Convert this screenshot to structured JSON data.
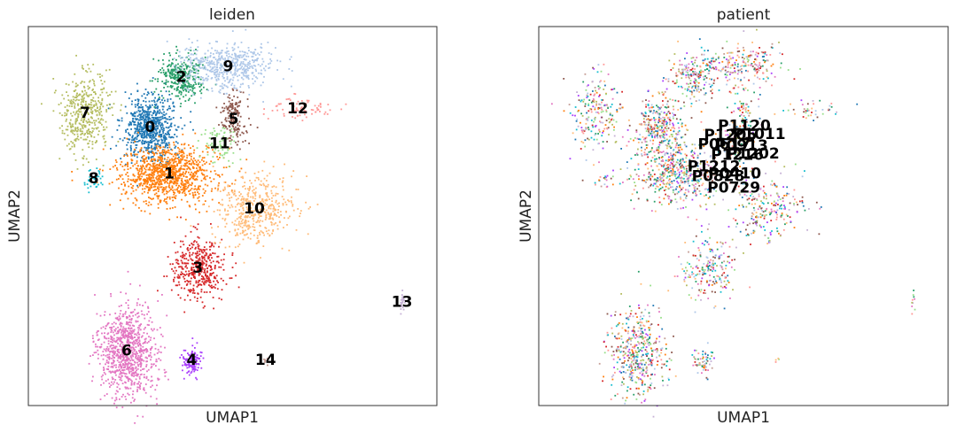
{
  "chart_data": [
    {
      "type": "scatter",
      "title": "leiden",
      "xlabel": "UMAP1",
      "ylabel": "UMAP2",
      "ticks": false,
      "grid": false,
      "legend": "on data",
      "clusters": [
        {
          "label": "0",
          "color": "#1f77b4",
          "center": [
            -0.9,
            0.76
          ],
          "spread": [
            0.15,
            0.14
          ],
          "n": 700
        },
        {
          "label": "1",
          "color": "#ff7f0e",
          "center": [
            -0.68,
            0.36
          ],
          "spread": [
            0.28,
            0.12
          ],
          "n": 1000
        },
        {
          "label": "2",
          "color": "#279e68",
          "center": [
            -0.54,
            1.19
          ],
          "spread": [
            0.14,
            0.1
          ],
          "n": 320
        },
        {
          "label": "3",
          "color": "#d62728",
          "center": [
            -0.35,
            -0.45
          ],
          "spread": [
            0.15,
            0.13
          ],
          "n": 420
        },
        {
          "label": "4",
          "color": "#aa40fc",
          "center": [
            -0.42,
            -1.24
          ],
          "spread": [
            0.06,
            0.06
          ],
          "n": 120
        },
        {
          "label": "5",
          "color": "#8c564b",
          "center": [
            0.06,
            0.83
          ],
          "spread": [
            0.07,
            0.11
          ],
          "n": 160
        },
        {
          "label": "6",
          "color": "#e377c2",
          "center": [
            -1.17,
            -1.16
          ],
          "spread": [
            0.17,
            0.2
          ],
          "n": 900
        },
        {
          "label": "7",
          "color": "#b5bd61",
          "center": [
            -1.65,
            0.88
          ],
          "spread": [
            0.14,
            0.17
          ],
          "n": 420
        },
        {
          "label": "8",
          "color": "#17becf",
          "center": [
            -1.55,
            0.32
          ],
          "spread": [
            0.05,
            0.06
          ],
          "n": 40
        },
        {
          "label": "9",
          "color": "#aec7e8",
          "center": [
            0.0,
            1.28
          ],
          "spread": [
            0.26,
            0.1
          ],
          "n": 520
        },
        {
          "label": "10",
          "color": "#ffbb78",
          "center": [
            0.3,
            0.06
          ],
          "spread": [
            0.22,
            0.15
          ],
          "n": 460
        },
        {
          "label": "11",
          "color": "#98df8a",
          "center": [
            -0.1,
            0.62
          ],
          "spread": [
            0.1,
            0.1
          ],
          "n": 80
        },
        {
          "label": "12",
          "color": "#ff9896",
          "center": [
            0.8,
            0.92
          ],
          "spread": [
            0.18,
            0.05
          ],
          "n": 80
        },
        {
          "label": "13",
          "color": "#c5b0d5",
          "center": [
            2.0,
            -0.74
          ],
          "spread": [
            0.02,
            0.05
          ],
          "n": 20
        },
        {
          "label": "14",
          "color": "#c49c94",
          "center": [
            0.43,
            -1.24
          ],
          "spread": [
            0.02,
            0.02
          ],
          "n": 8
        }
      ]
    },
    {
      "type": "scatter",
      "title": "patient",
      "xlabel": "UMAP1",
      "ylabel": "UMAP2",
      "ticks": false,
      "grid": false,
      "legend": "on data",
      "labels": [
        {
          "text": "P1120",
          "pos": [
            0.06,
            0.77
          ]
        },
        {
          "text": "P1205",
          "pos": [
            -0.1,
            0.69
          ]
        },
        {
          "text": "P1011",
          "pos": [
            0.23,
            0.7
          ]
        },
        {
          "text": "P0617",
          "pos": [
            -0.17,
            0.61
          ]
        },
        {
          "text": "P0913",
          "pos": [
            0.03,
            0.6
          ]
        },
        {
          "text": "P1216",
          "pos": [
            -0.02,
            0.52
          ]
        },
        {
          "text": "P1202",
          "pos": [
            0.16,
            0.53
          ]
        },
        {
          "text": "P1212",
          "pos": [
            -0.29,
            0.42
          ]
        },
        {
          "text": "P0828",
          "pos": [
            -0.24,
            0.34
          ]
        },
        {
          "text": "P0410",
          "pos": [
            -0.05,
            0.36
          ]
        },
        {
          "text": "P0729",
          "pos": [
            -0.06,
            0.24
          ]
        }
      ]
    }
  ]
}
